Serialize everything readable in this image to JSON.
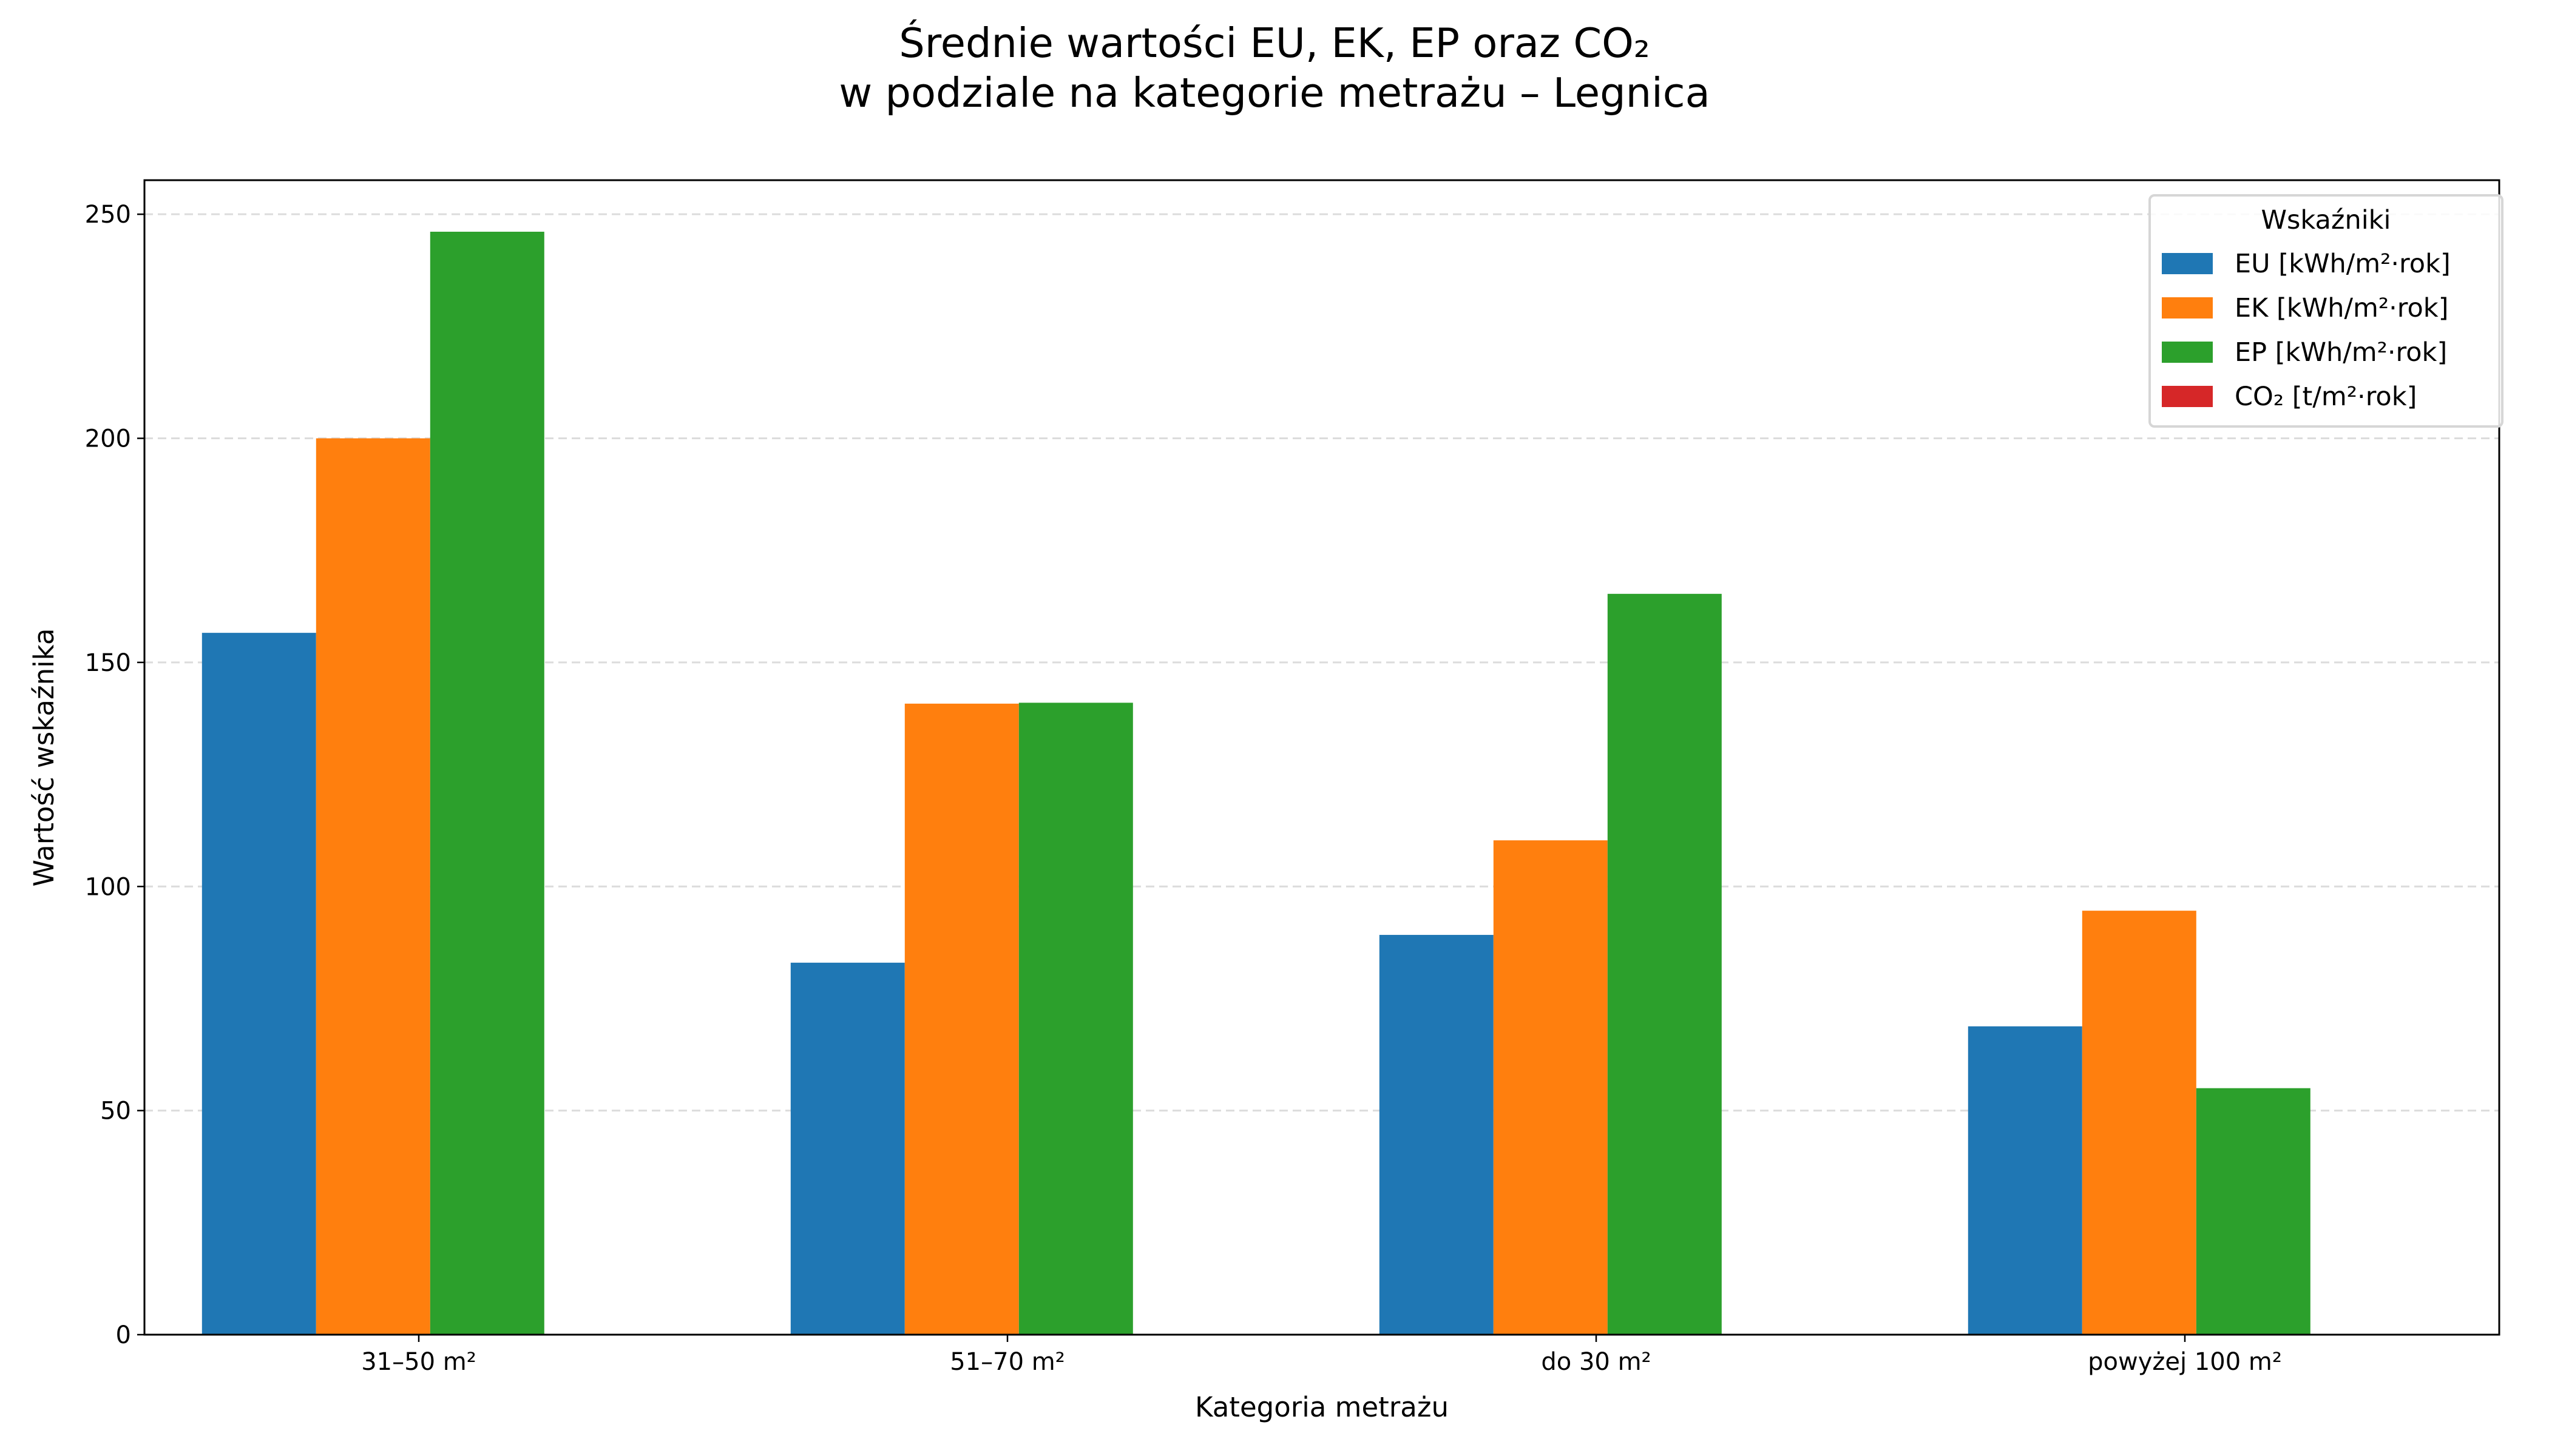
{
  "title_line1": "Średnie wartości EU, EK, EP oraz CO₂",
  "title_line2": "w podziale na kategorie metrażu – Legnica",
  "chart_data": {
    "type": "bar",
    "title": "Średnie wartości EU, EK, EP oraz CO₂ w podziale na kategorie metrażu – Legnica",
    "xlabel": "Kategoria metrażu",
    "ylabel": "Wartość wskaźnika",
    "categories": [
      "31–50 m²",
      "51–70 m²",
      "do 30 m²",
      "powyżej 100 m²"
    ],
    "ylim": [
      0,
      257.6
    ],
    "yticks": [
      0,
      50,
      100,
      150,
      200,
      250
    ],
    "grid": "y, dashed",
    "legend": {
      "title": "Wskaźniki",
      "placement": "top-right"
    },
    "series": [
      {
        "name": "EU [kWh/m²·rok]",
        "color": "#1f77b4",
        "values": [
          156.6,
          83.0,
          89.2,
          68.8
        ]
      },
      {
        "name": "EK [kWh/m²·rok]",
        "color": "#ff7f0e",
        "values": [
          200.0,
          140.8,
          110.3,
          94.6
        ]
      },
      {
        "name": "EP [kWh/m²·rok]",
        "color": "#2ca02c",
        "values": [
          246.1,
          141.0,
          165.3,
          55.0
        ]
      },
      {
        "name": "CO₂ [t/m²·rok]",
        "color": "#d62728",
        "values": [
          0.05,
          0.04,
          0.05,
          0.03
        ]
      }
    ]
  }
}
